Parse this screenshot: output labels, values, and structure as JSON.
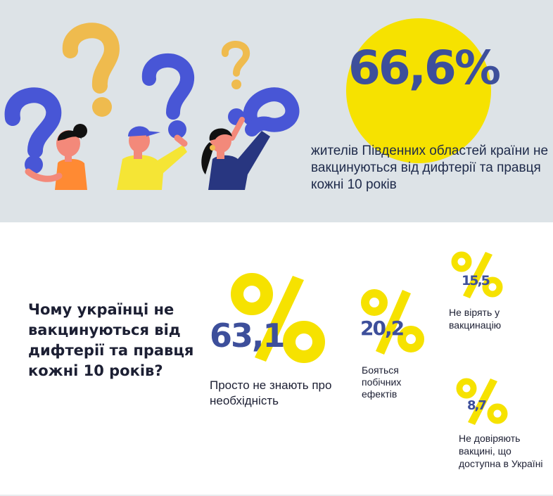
{
  "header": {
    "headline_value": "66,6%",
    "headline_text": "жителів Південних областей країни не вакцинуються від дифтерії та правця кожні 10 років"
  },
  "section": {
    "question": "Чому українці не вакцинуються від дифтерії та правця кожні 10 років?"
  },
  "stats": [
    {
      "value": "63,1",
      "label": "Просто не знають про необхідність"
    },
    {
      "value": "20,2",
      "label": "Бояться побічних ефектів"
    },
    {
      "value": "15,5",
      "label": "Не вірять у вакцинацію"
    },
    {
      "value": "8,7",
      "label": "Не довіряють вакцині, що доступна в Україні"
    }
  ],
  "colors": {
    "yellow": "#f6e200",
    "navy": "#3d4f9b",
    "blue": "#4856d6",
    "orange": "#efbb4e",
    "background": "#dde3e7"
  },
  "icons": [
    "question-mark-icon",
    "percent-icon"
  ]
}
